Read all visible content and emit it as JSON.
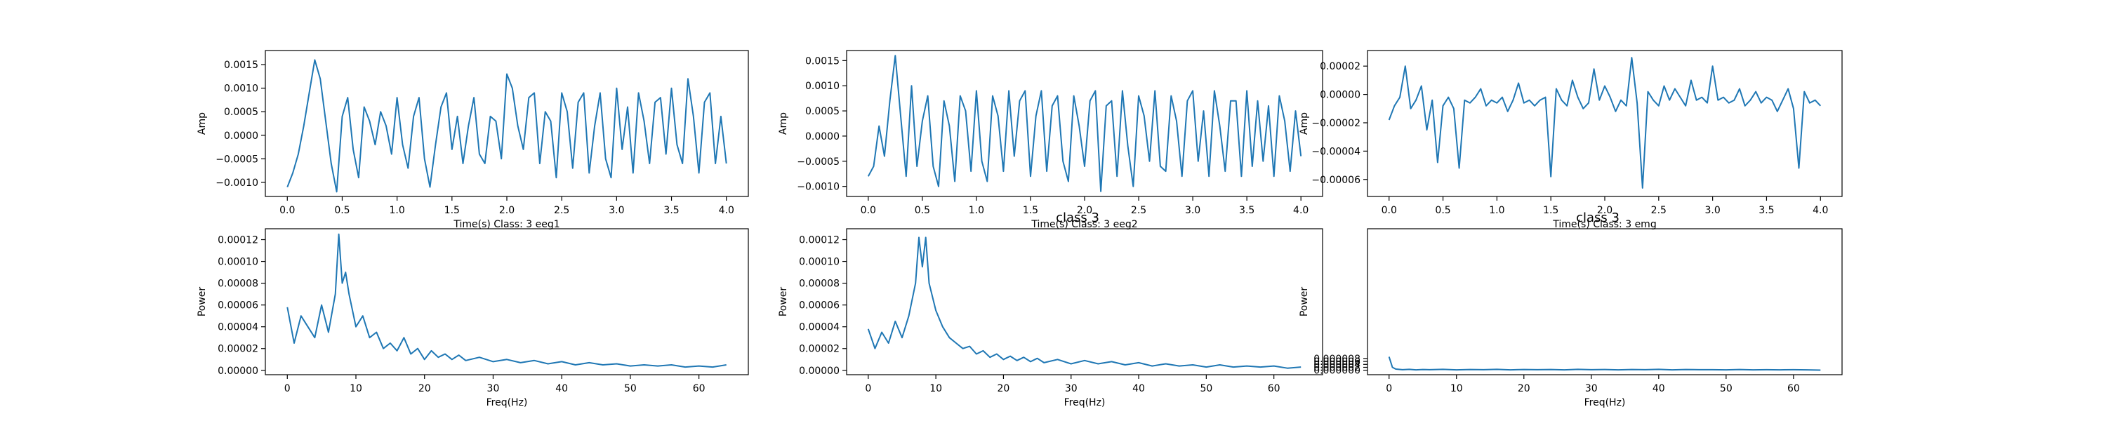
{
  "figure": {
    "line_color": "#1f77b4",
    "axes_color": "#000000"
  },
  "chart_data": [
    {
      "type": "line",
      "row": "time",
      "xlabel": "Time(s) Class: 3 eeg1",
      "ylabel": "Amp",
      "title": "",
      "xlim": [
        -0.2,
        4.2
      ],
      "ylim": [
        -0.0013,
        0.0018
      ],
      "xticks": [
        0.0,
        0.5,
        1.0,
        1.5,
        2.0,
        2.5,
        3.0,
        3.5,
        4.0
      ],
      "xtick_labels": [
        "0.0",
        "0.5",
        "1.0",
        "1.5",
        "2.0",
        "2.5",
        "3.0",
        "3.5",
        "4.0"
      ],
      "yticks": [
        -0.001,
        -0.0005,
        0,
        0.0005,
        0.001,
        0.0015
      ],
      "ytick_labels": [
        "−0.0010",
        "−0.0005",
        "0.0000",
        "0.0005",
        "0.0010",
        "0.0015"
      ],
      "series": [
        {
          "x": [
            0.0,
            0.05,
            0.1,
            0.15,
            0.2,
            0.25,
            0.3,
            0.35,
            0.4,
            0.45,
            0.5,
            0.55,
            0.6,
            0.65,
            0.7,
            0.75,
            0.8,
            0.85,
            0.9,
            0.95,
            1.0,
            1.05,
            1.1,
            1.15,
            1.2,
            1.25,
            1.3,
            1.35,
            1.4,
            1.45,
            1.5,
            1.55,
            1.6,
            1.65,
            1.7,
            1.75,
            1.8,
            1.85,
            1.9,
            1.95,
            2.0,
            2.05,
            2.1,
            2.15,
            2.2,
            2.25,
            2.3,
            2.35,
            2.4,
            2.45,
            2.5,
            2.55,
            2.6,
            2.65,
            2.7,
            2.75,
            2.8,
            2.85,
            2.9,
            2.95,
            3.0,
            3.05,
            3.1,
            3.15,
            3.2,
            3.25,
            3.3,
            3.35,
            3.4,
            3.45,
            3.5,
            3.55,
            3.6,
            3.65,
            3.7,
            3.75,
            3.8,
            3.85,
            3.9,
            3.95,
            4.0
          ],
          "y": [
            -0.0011,
            -0.0008,
            -0.0004,
            0.0002,
            0.0009,
            0.0016,
            0.0012,
            0.0003,
            -0.0006,
            -0.0012,
            0.0004,
            0.0008,
            -0.0003,
            -0.0009,
            0.0006,
            0.0003,
            -0.0002,
            0.0005,
            0.0002,
            -0.0004,
            0.0008,
            -0.0002,
            -0.0007,
            0.0004,
            0.0008,
            -0.0005,
            -0.0011,
            -0.0002,
            0.0006,
            0.0009,
            -0.0003,
            0.0004,
            -0.0006,
            0.0002,
            0.0008,
            -0.0004,
            -0.0006,
            0.0004,
            0.0003,
            -0.0005,
            0.0013,
            0.001,
            0.0002,
            -0.0003,
            0.0008,
            0.0009,
            -0.0006,
            0.0005,
            0.0003,
            -0.0009,
            0.0009,
            0.0005,
            -0.0007,
            0.0007,
            0.0009,
            -0.0008,
            0.0002,
            0.0009,
            -0.0005,
            -0.0009,
            0.001,
            -0.0003,
            0.0006,
            -0.0008,
            0.0009,
            0.0003,
            -0.0006,
            0.0007,
            0.0008,
            -0.0004,
            0.001,
            -0.0002,
            -0.0006,
            0.0012,
            0.0004,
            -0.0008,
            0.0007,
            0.0009,
            -0.0006,
            0.0004,
            -0.0006
          ]
        }
      ]
    },
    {
      "type": "line",
      "row": "time",
      "xlabel": "Time(s) Class: 3 eeg2",
      "ylabel": "Amp",
      "title": "class 3",
      "xlim": [
        -0.2,
        4.2
      ],
      "ylim": [
        -0.0012,
        0.0017
      ],
      "xticks": [
        0.0,
        0.5,
        1.0,
        1.5,
        2.0,
        2.5,
        3.0,
        3.5,
        4.0
      ],
      "xtick_labels": [
        "0.0",
        "0.5",
        "1.0",
        "1.5",
        "2.0",
        "2.5",
        "3.0",
        "3.5",
        "4.0"
      ],
      "yticks": [
        -0.001,
        -0.0005,
        0,
        0.0005,
        0.001,
        0.0015
      ],
      "ytick_labels": [
        "−0.0010",
        "−0.0005",
        "0.0000",
        "0.0005",
        "0.0010",
        "0.0015"
      ],
      "series": [
        {
          "x": [
            0.0,
            0.05,
            0.1,
            0.15,
            0.2,
            0.25,
            0.3,
            0.35,
            0.4,
            0.45,
            0.5,
            0.55,
            0.6,
            0.65,
            0.7,
            0.75,
            0.8,
            0.85,
            0.9,
            0.95,
            1.0,
            1.05,
            1.1,
            1.15,
            1.2,
            1.25,
            1.3,
            1.35,
            1.4,
            1.45,
            1.5,
            1.55,
            1.6,
            1.65,
            1.7,
            1.75,
            1.8,
            1.85,
            1.9,
            1.95,
            2.0,
            2.05,
            2.1,
            2.15,
            2.2,
            2.25,
            2.3,
            2.35,
            2.4,
            2.45,
            2.5,
            2.55,
            2.6,
            2.65,
            2.7,
            2.75,
            2.8,
            2.85,
            2.9,
            2.95,
            3.0,
            3.05,
            3.1,
            3.15,
            3.2,
            3.25,
            3.3,
            3.35,
            3.4,
            3.45,
            3.5,
            3.55,
            3.6,
            3.65,
            3.7,
            3.75,
            3.8,
            3.85,
            3.9,
            3.95,
            4.0
          ],
          "y": [
            -0.0008,
            -0.0006,
            0.0002,
            -0.0004,
            0.0007,
            0.0016,
            0.0004,
            -0.0008,
            0.001,
            -0.0006,
            0.0003,
            0.0008,
            -0.0006,
            -0.001,
            0.0007,
            0.0002,
            -0.0009,
            0.0008,
            0.0005,
            -0.0007,
            0.0009,
            -0.0005,
            -0.0009,
            0.0008,
            0.0004,
            -0.0007,
            0.0009,
            -0.0004,
            0.0007,
            0.0009,
            -0.0008,
            0.0004,
            0.0009,
            -0.0007,
            0.0006,
            0.0008,
            -0.0005,
            -0.0009,
            0.0008,
            0.0002,
            -0.0006,
            0.0007,
            0.0009,
            -0.0011,
            0.0006,
            0.0007,
            -0.0008,
            0.0009,
            -0.0002,
            -0.001,
            0.0008,
            0.0004,
            -0.0005,
            0.0009,
            -0.0006,
            -0.0007,
            0.0008,
            0.0003,
            -0.0008,
            0.0007,
            0.0009,
            -0.0005,
            0.0005,
            -0.0008,
            0.0009,
            0.0002,
            -0.0007,
            0.0007,
            0.0007,
            -0.0008,
            0.0009,
            -0.0006,
            0.0007,
            -0.0005,
            0.0006,
            -0.0008,
            0.0008,
            0.0003,
            -0.0007,
            0.0005,
            -0.0004
          ]
        }
      ]
    },
    {
      "type": "line",
      "row": "time",
      "xlabel": "Time(s) Class: 3 emg",
      "ylabel": "Amp",
      "title": "class 3",
      "xlim": [
        -0.2,
        4.2
      ],
      "ylim": [
        -7.2e-05,
        3.1e-05
      ],
      "xticks": [
        0.0,
        0.5,
        1.0,
        1.5,
        2.0,
        2.5,
        3.0,
        3.5,
        4.0
      ],
      "xtick_labels": [
        "0.0",
        "0.5",
        "1.0",
        "1.5",
        "2.0",
        "2.5",
        "3.0",
        "3.5",
        "4.0"
      ],
      "yticks": [
        -6e-05,
        -4e-05,
        -2e-05,
        0,
        2e-05
      ],
      "ytick_labels": [
        "−0.00006",
        "−0.00004",
        "−0.00002",
        "0.00000",
        "0.00002"
      ],
      "series": [
        {
          "x": [
            0.0,
            0.05,
            0.1,
            0.15,
            0.2,
            0.25,
            0.3,
            0.35,
            0.4,
            0.45,
            0.5,
            0.55,
            0.6,
            0.65,
            0.7,
            0.75,
            0.8,
            0.85,
            0.9,
            0.95,
            1.0,
            1.05,
            1.1,
            1.15,
            1.2,
            1.25,
            1.3,
            1.35,
            1.4,
            1.45,
            1.5,
            1.55,
            1.6,
            1.65,
            1.7,
            1.75,
            1.8,
            1.85,
            1.9,
            1.95,
            2.0,
            2.05,
            2.1,
            2.15,
            2.2,
            2.25,
            2.3,
            2.35,
            2.4,
            2.45,
            2.5,
            2.55,
            2.6,
            2.65,
            2.7,
            2.75,
            2.8,
            2.85,
            2.9,
            2.95,
            3.0,
            3.05,
            3.1,
            3.15,
            3.2,
            3.25,
            3.3,
            3.35,
            3.4,
            3.45,
            3.5,
            3.55,
            3.6,
            3.65,
            3.7,
            3.75,
            3.8,
            3.85,
            3.9,
            3.95,
            4.0
          ],
          "y": [
            -1.8e-05,
            -8e-06,
            -2e-06,
            2e-05,
            -1e-05,
            -4e-06,
            6e-06,
            -2.5e-05,
            -4e-06,
            -4.8e-05,
            -8e-06,
            -2e-06,
            -1e-05,
            -5.2e-05,
            -4e-06,
            -6e-06,
            -2e-06,
            4e-06,
            -8e-06,
            -4e-06,
            -6e-06,
            -2e-06,
            -1.2e-05,
            -4e-06,
            8e-06,
            -6e-06,
            -4e-06,
            -8e-06,
            -4e-06,
            -2e-06,
            -5.8e-05,
            4e-06,
            -4e-06,
            -8e-06,
            1e-05,
            -2e-06,
            -1e-05,
            -6e-06,
            1.8e-05,
            -4e-06,
            6e-06,
            -2e-06,
            -1.2e-05,
            -4e-06,
            -8e-06,
            2.6e-05,
            -6e-06,
            -6.6e-05,
            2e-06,
            -4e-06,
            -8e-06,
            6e-06,
            -4e-06,
            4e-06,
            -2e-06,
            -8e-06,
            1e-05,
            -4e-06,
            -2e-06,
            -6e-06,
            2e-05,
            -4e-06,
            -2e-06,
            -6e-06,
            -4e-06,
            4e-06,
            -8e-06,
            -4e-06,
            2e-06,
            -6e-06,
            -2e-06,
            -4e-06,
            -1.2e-05,
            -4e-06,
            4e-06,
            -1e-05,
            -5.2e-05,
            2e-06,
            -6e-06,
            -4e-06,
            -8e-06
          ]
        }
      ]
    },
    {
      "type": "line",
      "row": "freq",
      "xlabel": "Freq(Hz)",
      "ylabel": "Power",
      "title": "",
      "xlim": [
        -3.2,
        67.2
      ],
      "ylim": [
        -4e-06,
        0.00013
      ],
      "xticks": [
        0,
        10,
        20,
        30,
        40,
        50,
        60
      ],
      "xtick_labels": [
        "0",
        "10",
        "20",
        "30",
        "40",
        "50",
        "60"
      ],
      "yticks": [
        0,
        2e-05,
        4e-05,
        6e-05,
        8e-05,
        0.0001,
        0.00012
      ],
      "ytick_labels": [
        "0.00000",
        "0.00002",
        "0.00004",
        "0.00006",
        "0.00008",
        "0.00010",
        "0.00012"
      ],
      "series": [
        {
          "x": [
            0,
            1,
            2,
            3,
            4,
            5,
            6,
            7,
            7.5,
            8,
            8.5,
            9,
            10,
            11,
            12,
            13,
            14,
            15,
            16,
            17,
            18,
            19,
            20,
            21,
            22,
            23,
            24,
            25,
            26,
            28,
            30,
            32,
            34,
            36,
            38,
            40,
            42,
            44,
            46,
            48,
            50,
            52,
            54,
            56,
            58,
            60,
            62,
            64
          ],
          "y": [
            5.8e-05,
            2.5e-05,
            5e-05,
            4e-05,
            3e-05,
            6e-05,
            3.5e-05,
            7e-05,
            0.000125,
            8e-05,
            9e-05,
            7e-05,
            4e-05,
            5e-05,
            3e-05,
            3.5e-05,
            2e-05,
            2.5e-05,
            1.8e-05,
            3e-05,
            1.5e-05,
            2e-05,
            1e-05,
            1.8e-05,
            1.2e-05,
            1.5e-05,
            1e-05,
            1.4e-05,
            9e-06,
            1.2e-05,
            8e-06,
            1e-05,
            7e-06,
            9e-06,
            6e-06,
            8e-06,
            5e-06,
            7e-06,
            5e-06,
            6e-06,
            4e-06,
            5e-06,
            4e-06,
            5e-06,
            3e-06,
            4e-06,
            3e-06,
            5e-06
          ]
        }
      ]
    },
    {
      "type": "line",
      "row": "freq",
      "xlabel": "Freq(Hz)",
      "ylabel": "Power",
      "title": "",
      "xlim": [
        -3.2,
        67.2
      ],
      "ylim": [
        -4e-06,
        0.00013
      ],
      "xticks": [
        0,
        10,
        20,
        30,
        40,
        50,
        60
      ],
      "xtick_labels": [
        "0",
        "10",
        "20",
        "30",
        "40",
        "50",
        "60"
      ],
      "yticks": [
        0,
        2e-05,
        4e-05,
        6e-05,
        8e-05,
        0.0001,
        0.00012
      ],
      "ytick_labels": [
        "0.00000",
        "0.00002",
        "0.00004",
        "0.00006",
        "0.00008",
        "0.00010",
        "0.00012"
      ],
      "series": [
        {
          "x": [
            0,
            1,
            2,
            3,
            4,
            5,
            6,
            7,
            7.5,
            8,
            8.5,
            9,
            10,
            11,
            12,
            13,
            14,
            15,
            16,
            17,
            18,
            19,
            20,
            21,
            22,
            23,
            24,
            25,
            26,
            28,
            30,
            32,
            34,
            36,
            38,
            40,
            42,
            44,
            46,
            48,
            50,
            52,
            54,
            56,
            58,
            60,
            62,
            64
          ],
          "y": [
            3.8e-05,
            2e-05,
            3.5e-05,
            2.5e-05,
            4.5e-05,
            3e-05,
            5e-05,
            8e-05,
            0.000122,
            9.5e-05,
            0.000122,
            8e-05,
            5.5e-05,
            4e-05,
            3e-05,
            2.5e-05,
            2e-05,
            2.2e-05,
            1.5e-05,
            1.8e-05,
            1.2e-05,
            1.5e-05,
            1e-05,
            1.3e-05,
            9e-06,
            1.2e-05,
            8e-06,
            1.1e-05,
            7e-06,
            1e-05,
            6e-06,
            9e-06,
            6e-06,
            8e-06,
            5e-06,
            7e-06,
            4e-06,
            6e-06,
            4e-06,
            5e-06,
            3e-06,
            5e-06,
            3e-06,
            4e-06,
            3e-06,
            4e-06,
            2e-06,
            3e-06
          ]
        }
      ]
    },
    {
      "type": "line",
      "row": "freq",
      "xlabel": "Freq(Hz)",
      "ylabel": "Power",
      "title": "",
      "xlim": [
        -3.2,
        67.2
      ],
      "ylim": [
        -3e-06,
        9.6e-05
      ],
      "xticks": [
        0,
        10,
        20,
        30,
        40,
        50,
        60
      ],
      "xtick_labels": [
        "0",
        "10",
        "20",
        "30",
        "40",
        "50",
        "60"
      ],
      "yticks": [
        0,
        2e-06,
        4e-06,
        6e-06,
        8e-06
      ],
      "ytick_labels": [
        "0.000000",
        "0.000002",
        "0.000004",
        "0.000006",
        "0.000008"
      ],
      "series": [
        {
          "x": [
            0,
            0.5,
            1,
            2,
            3,
            4,
            5,
            6,
            8,
            10,
            12,
            14,
            16,
            18,
            20,
            22,
            24,
            26,
            28,
            30,
            32,
            34,
            36,
            38,
            40,
            42,
            44,
            46,
            48,
            50,
            52,
            54,
            56,
            58,
            60,
            62,
            64
          ],
          "y": [
            9.2e-06,
            2e-06,
            8e-07,
            4e-07,
            6e-07,
            3e-07,
            5e-07,
            4e-07,
            6e-07,
            3e-07,
            5e-07,
            4e-07,
            6e-07,
            3e-07,
            5e-07,
            4e-07,
            5e-07,
            3e-07,
            6e-07,
            4e-07,
            5e-07,
            3e-07,
            5e-07,
            4e-07,
            6e-07,
            3e-07,
            5e-07,
            4e-07,
            4e-07,
            3e-07,
            5e-07,
            3e-07,
            4e-07,
            3e-07,
            4e-07,
            3e-07,
            1e-07
          ]
        }
      ]
    }
  ]
}
